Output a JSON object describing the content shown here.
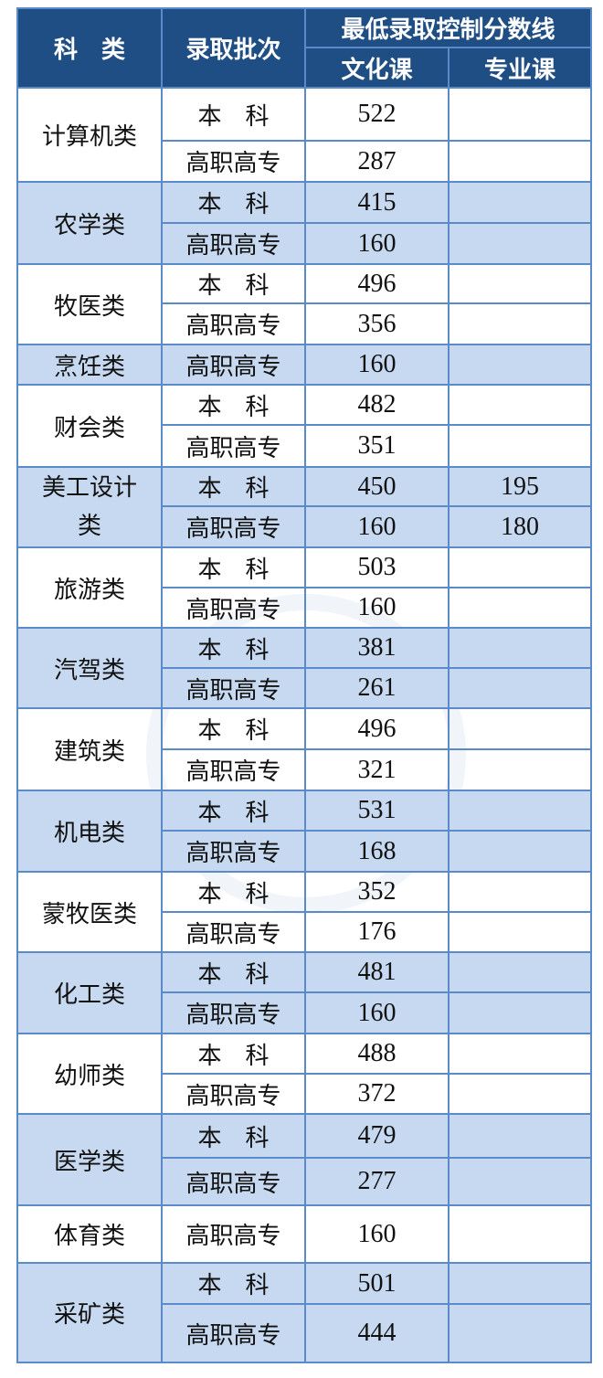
{
  "header": {
    "category": "科　类",
    "batch": "录取批次",
    "min_score_line": "最低录取控制分数线",
    "culture": "文化课",
    "professional": "专业课"
  },
  "colors": {
    "header_bg": "#1f4e84",
    "alt_row": "#c6d9f0",
    "border": "#5b8ac8"
  },
  "groups": [
    {
      "category": "计算机类",
      "rows": [
        {
          "batch": "本　科",
          "culture": "522",
          "professional": ""
        },
        {
          "batch": "高职高专",
          "culture": "287",
          "professional": ""
        }
      ]
    },
    {
      "category": "农学类",
      "rows": [
        {
          "batch": "本　科",
          "culture": "415",
          "professional": ""
        },
        {
          "batch": "高职高专",
          "culture": "160",
          "professional": ""
        }
      ]
    },
    {
      "category": "牧医类",
      "rows": [
        {
          "batch": "本　科",
          "culture": "496",
          "professional": ""
        },
        {
          "batch": "高职高专",
          "culture": "356",
          "professional": ""
        }
      ]
    },
    {
      "category": "烹饪类",
      "rows": [
        {
          "batch": "高职高专",
          "culture": "160",
          "professional": ""
        }
      ]
    },
    {
      "category": "财会类",
      "rows": [
        {
          "batch": "本　科",
          "culture": "482",
          "professional": ""
        },
        {
          "batch": "高职高专",
          "culture": "351",
          "professional": ""
        }
      ]
    },
    {
      "category": "美工设计类",
      "rows": [
        {
          "batch": "本　科",
          "culture": "450",
          "professional": "195"
        },
        {
          "batch": "高职高专",
          "culture": "160",
          "professional": "180"
        }
      ]
    },
    {
      "category": "旅游类",
      "rows": [
        {
          "batch": "本　科",
          "culture": "503",
          "professional": ""
        },
        {
          "batch": "高职高专",
          "culture": "160",
          "professional": ""
        }
      ]
    },
    {
      "category": "汽驾类",
      "rows": [
        {
          "batch": "本　科",
          "culture": "381",
          "professional": ""
        },
        {
          "batch": "高职高专",
          "culture": "261",
          "professional": ""
        }
      ]
    },
    {
      "category": "建筑类",
      "rows": [
        {
          "batch": "本　科",
          "culture": "496",
          "professional": ""
        },
        {
          "batch": "高职高专",
          "culture": "321",
          "professional": ""
        }
      ]
    },
    {
      "category": "机电类",
      "rows": [
        {
          "batch": "本　科",
          "culture": "531",
          "professional": ""
        },
        {
          "batch": "高职高专",
          "culture": "168",
          "professional": ""
        }
      ]
    },
    {
      "category": "蒙牧医类",
      "rows": [
        {
          "batch": "本　科",
          "culture": "352",
          "professional": ""
        },
        {
          "batch": "高职高专",
          "culture": "176",
          "professional": ""
        }
      ]
    },
    {
      "category": "化工类",
      "rows": [
        {
          "batch": "本　科",
          "culture": "481",
          "professional": ""
        },
        {
          "batch": "高职高专",
          "culture": "160",
          "professional": ""
        }
      ]
    },
    {
      "category": "幼师类",
      "rows": [
        {
          "batch": "本　科",
          "culture": "488",
          "professional": ""
        },
        {
          "batch": "高职高专",
          "culture": "372",
          "professional": ""
        }
      ]
    },
    {
      "category": "医学类",
      "rows": [
        {
          "batch": "本　科",
          "culture": "479",
          "professional": ""
        },
        {
          "batch": "高职高专",
          "culture": "277",
          "professional": ""
        }
      ]
    },
    {
      "category": "体育类",
      "rows": [
        {
          "batch": "高职高专",
          "culture": "160",
          "professional": ""
        }
      ]
    },
    {
      "category": "采矿类",
      "rows": [
        {
          "batch": "本　科",
          "culture": "501",
          "professional": ""
        },
        {
          "batch": "高职高专",
          "culture": "444",
          "professional": ""
        }
      ]
    }
  ]
}
